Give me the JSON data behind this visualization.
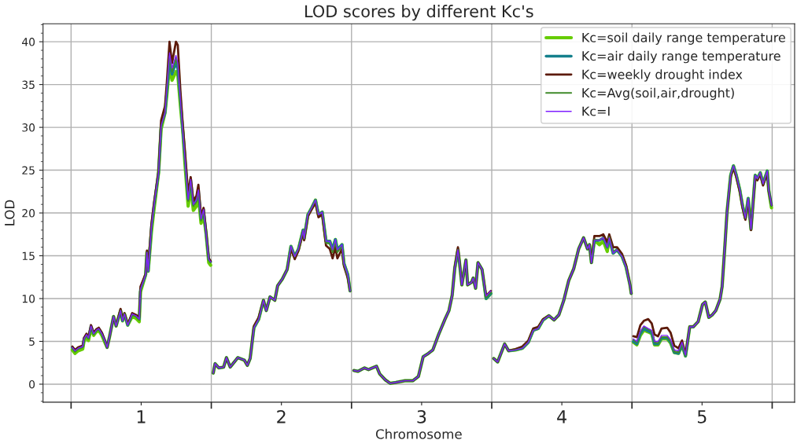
{
  "chart_data": {
    "type": "line",
    "title": "LOD scores by different Kc's",
    "xlabel": "Chromosome",
    "ylabel": "LOD",
    "x": [
      0.509,
      0.528,
      0.55,
      0.583,
      0.592,
      0.61,
      0.624,
      0.642,
      0.661,
      0.679,
      0.697,
      0.72,
      0.743,
      0.757,
      0.775,
      0.803,
      0.821,
      0.853,
      0.867,
      0.881,
      0.904,
      0.936,
      0.963,
      0.986,
      0.995,
      1.032,
      1.041,
      1.05,
      1.073,
      1.092,
      1.124,
      1.142,
      1.17,
      1.183,
      1.202,
      1.22,
      1.248,
      1.261,
      1.28,
      1.298,
      1.312,
      1.335,
      1.353,
      1.372,
      1.394,
      1.408,
      1.427,
      1.445,
      1.463,
      1.482,
      1.495,
      1.5,
      1.514,
      1.527,
      1.554,
      1.588,
      1.608,
      1.635,
      1.689,
      1.736,
      1.757,
      1.777,
      1.804,
      1.838,
      1.872,
      1.892,
      1.919,
      1.953,
      1.973,
      2.007,
      2.041,
      2.068,
      2.095,
      2.122,
      2.155,
      2.162,
      2.189,
      2.216,
      2.243,
      2.264,
      2.291,
      2.318,
      2.345,
      2.365,
      2.385,
      2.399,
      2.432,
      2.446,
      2.473,
      2.49,
      2.5,
      2.517,
      2.546,
      2.592,
      2.621,
      2.649,
      2.678,
      2.701,
      2.741,
      2.776,
      2.816,
      2.879,
      2.937,
      2.977,
      3.011,
      3.04,
      3.08,
      3.121,
      3.167,
      3.195,
      3.218,
      3.236,
      3.259,
      3.27,
      3.287,
      3.316,
      3.328,
      3.356,
      3.368,
      3.385,
      3.402,
      3.431,
      3.46,
      3.494,
      3.5,
      3.514,
      3.542,
      3.592,
      3.62,
      3.669,
      3.718,
      3.761,
      3.796,
      3.831,
      3.866,
      3.908,
      3.944,
      3.979,
      4.014,
      4.049,
      4.085,
      4.12,
      4.155,
      4.183,
      4.197,
      4.211,
      4.232,
      4.268,
      4.296,
      4.324,
      4.338,
      4.366,
      4.394,
      4.43,
      4.458,
      4.486,
      4.495,
      4.5,
      4.51,
      4.535,
      4.56,
      4.585,
      4.616,
      4.641,
      4.661,
      4.686,
      4.711,
      4.751,
      4.776,
      4.802,
      4.832,
      4.857,
      4.882,
      4.912,
      4.937,
      4.972,
      5.003,
      5.023,
      5.048,
      5.073,
      5.098,
      5.128,
      5.143,
      5.163,
      5.178,
      5.204,
      5.224,
      5.244,
      5.269,
      5.289,
      5.309,
      5.329,
      5.349,
      5.379,
      5.394,
      5.415,
      5.435,
      5.465,
      5.475,
      5.495
    ],
    "series": [
      {
        "name": "Kc=soil daily range temperature",
        "color": "#66cc00",
        "values": [
          4.0,
          3.6,
          3.9,
          4.1,
          5.0,
          5.5,
          5.1,
          6.5,
          5.7,
          6.1,
          6.3,
          5.7,
          4.8,
          4.3,
          5.6,
          7.9,
          6.8,
          8.6,
          7.4,
          8.2,
          6.9,
          7.9,
          7.7,
          7.3,
          10.8,
          12.8,
          15.4,
          13.2,
          17.8,
          20.5,
          24.7,
          29.8,
          31.7,
          33.8,
          37.3,
          35.5,
          36.5,
          36.2,
          32.5,
          29.3,
          25.8,
          20.8,
          23.2,
          20.3,
          20.8,
          22.0,
          18.8,
          19.8,
          17.6,
          14.2,
          13.9,
          null,
          1.3,
          2.4,
          1.9,
          2.0,
          3.1,
          2.0,
          3.1,
          2.8,
          2.2,
          3.0,
          6.6,
          7.6,
          9.8,
          8.6,
          10.2,
          9.8,
          11.5,
          12.3,
          13.4,
          16.1,
          14.9,
          15.8,
          18.0,
          17.0,
          19.8,
          20.6,
          21.5,
          19.8,
          20.1,
          16.7,
          16.7,
          15.7,
          16.9,
          15.7,
          16.3,
          14.1,
          12.8,
          10.9,
          null,
          1.6,
          1.5,
          1.9,
          1.7,
          1.9,
          2.1,
          1.2,
          0.5,
          0.1,
          0.2,
          0.4,
          0.4,
          0.9,
          3.2,
          3.5,
          4.0,
          5.8,
          7.6,
          8.6,
          10.4,
          13.5,
          15.7,
          14.2,
          11.6,
          14.5,
          11.6,
          11.9,
          12.4,
          11.2,
          14.2,
          13.4,
          10.0,
          10.6,
          null,
          3.0,
          2.6,
          4.7,
          3.9,
          4.0,
          4.2,
          4.9,
          6.3,
          6.5,
          7.5,
          8.0,
          7.5,
          8.1,
          9.8,
          12.1,
          13.5,
          15.8,
          17.1,
          15.8,
          16.3,
          14.2,
          16.8,
          16.3,
          16.7,
          15.5,
          17.1,
          15.3,
          15.7,
          14.9,
          13.7,
          11.6,
          10.6,
          null,
          4.9,
          4.6,
          5.7,
          6.3,
          6.1,
          5.9,
          4.6,
          4.6,
          5.3,
          5.3,
          4.8,
          3.7,
          3.6,
          4.6,
          3.3,
          6.7,
          6.7,
          7.3,
          9.3,
          9.6,
          7.8,
          8.1,
          8.6,
          9.9,
          11.4,
          16.2,
          20.1,
          24.4,
          25.5,
          24.4,
          22.7,
          20.8,
          19.4,
          21.7,
          18.1,
          24.4,
          24.0,
          24.7,
          23.4,
          24.9,
          22.7,
          20.6
        ]
      },
      {
        "name": "Kc=air daily range temperature",
        "color": "#14808c",
        "values": [
          4.3,
          3.9,
          4.2,
          4.4,
          5.3,
          5.8,
          5.4,
          6.8,
          5.9,
          6.3,
          6.5,
          5.9,
          5.0,
          4.3,
          5.6,
          7.9,
          6.8,
          8.6,
          7.4,
          8.2,
          6.9,
          8.2,
          8.0,
          7.6,
          11.1,
          12.8,
          15.4,
          13.2,
          18.3,
          21.0,
          24.7,
          30.2,
          31.7,
          34.2,
          37.8,
          36.2,
          37.6,
          36.8,
          33.2,
          29.3,
          26.5,
          21.6,
          23.9,
          21.0,
          21.5,
          22.7,
          19.3,
          20.4,
          17.6,
          14.6,
          14.3,
          null,
          1.3,
          2.4,
          1.9,
          2.0,
          3.1,
          2.0,
          3.1,
          2.8,
          2.2,
          3.0,
          6.6,
          7.6,
          9.8,
          8.6,
          10.2,
          9.8,
          11.5,
          12.3,
          13.4,
          16.1,
          14.9,
          15.8,
          18.0,
          17.0,
          19.8,
          20.6,
          21.5,
          19.8,
          20.1,
          16.7,
          16.7,
          15.7,
          16.9,
          15.7,
          16.3,
          14.1,
          12.8,
          10.9,
          null,
          1.6,
          1.5,
          1.9,
          1.7,
          1.9,
          2.1,
          1.2,
          0.5,
          0.1,
          0.2,
          0.4,
          0.4,
          0.9,
          3.2,
          3.5,
          4.0,
          5.8,
          7.6,
          8.6,
          10.4,
          13.5,
          15.7,
          14.2,
          11.6,
          14.5,
          11.6,
          11.9,
          12.4,
          11.2,
          14.2,
          13.4,
          10.0,
          10.6,
          null,
          3.0,
          2.6,
          4.7,
          3.9,
          4.0,
          4.2,
          4.9,
          6.3,
          6.5,
          7.5,
          8.0,
          7.5,
          8.1,
          9.8,
          12.1,
          13.5,
          15.8,
          17.1,
          15.8,
          16.3,
          14.2,
          16.8,
          16.8,
          17.1,
          16.0,
          17.1,
          15.3,
          15.7,
          14.9,
          13.7,
          11.6,
          10.6,
          null,
          5.0,
          4.7,
          5.9,
          6.5,
          6.2,
          6.0,
          4.7,
          4.7,
          5.4,
          5.4,
          4.9,
          3.7,
          3.6,
          4.6,
          3.3,
          6.7,
          6.7,
          7.3,
          9.3,
          9.6,
          7.8,
          8.1,
          8.6,
          9.9,
          11.4,
          16.2,
          20.1,
          24.4,
          25.5,
          24.4,
          22.7,
          20.8,
          19.4,
          21.7,
          18.1,
          24.4,
          24.0,
          24.7,
          23.4,
          24.9,
          22.7,
          20.9
        ]
      },
      {
        "name": "Kc=weekly drought index",
        "color": "#5c1a0a",
        "values": [
          4.4,
          4.0,
          4.3,
          4.5,
          5.4,
          5.9,
          5.5,
          6.9,
          6.0,
          6.4,
          6.6,
          6.0,
          5.0,
          4.3,
          5.6,
          7.9,
          6.8,
          8.8,
          7.5,
          8.3,
          7.0,
          8.3,
          8.1,
          7.8,
          11.4,
          12.9,
          15.6,
          13.6,
          18.7,
          21.2,
          24.9,
          30.8,
          32.5,
          35.3,
          40.0,
          37.5,
          40.0,
          39.6,
          34.2,
          30.0,
          27.3,
          22.2,
          24.2,
          21.4,
          22.0,
          23.3,
          19.6,
          20.6,
          17.8,
          14.7,
          14.4,
          null,
          1.3,
          2.4,
          1.9,
          2.0,
          3.1,
          2.0,
          3.1,
          2.8,
          2.2,
          3.0,
          6.8,
          7.8,
          9.8,
          8.6,
          10.2,
          9.8,
          11.5,
          12.3,
          13.4,
          15.8,
          14.6,
          15.6,
          17.8,
          16.8,
          19.6,
          20.4,
          21.2,
          19.5,
          19.8,
          16.2,
          15.8,
          14.7,
          16.0,
          14.7,
          15.8,
          13.8,
          12.4,
          10.9,
          null,
          1.6,
          1.5,
          1.9,
          1.7,
          1.9,
          2.1,
          1.2,
          0.5,
          0.1,
          0.2,
          0.4,
          0.4,
          0.9,
          3.2,
          3.5,
          4.0,
          5.8,
          7.6,
          8.6,
          10.4,
          13.6,
          16.0,
          14.3,
          11.6,
          14.5,
          11.6,
          11.9,
          12.4,
          11.2,
          14.2,
          13.4,
          10.3,
          10.9,
          null,
          3.0,
          2.6,
          4.7,
          3.9,
          4.1,
          4.4,
          5.1,
          6.5,
          6.7,
          7.6,
          8.0,
          7.5,
          8.1,
          9.8,
          12.1,
          13.5,
          15.8,
          17.1,
          15.8,
          16.3,
          14.2,
          17.3,
          17.3,
          17.5,
          16.6,
          17.5,
          16.0,
          16.0,
          15.2,
          13.9,
          11.6,
          10.6,
          null,
          5.6,
          5.5,
          6.9,
          7.4,
          7.6,
          7.1,
          5.8,
          5.6,
          6.5,
          6.6,
          6.0,
          4.5,
          4.2,
          5.1,
          3.5,
          6.7,
          6.7,
          7.3,
          9.3,
          9.6,
          7.8,
          8.1,
          8.6,
          9.9,
          11.4,
          16.2,
          20.1,
          24.2,
          25.3,
          24.2,
          22.5,
          20.6,
          19.2,
          21.5,
          18.0,
          24.2,
          23.8,
          24.5,
          23.2,
          24.7,
          22.6,
          20.9
        ]
      },
      {
        "name": "Kc=Avg(soil,air,drought)",
        "color": "#3f8a2a",
        "values": [
          4.2,
          3.8,
          4.1,
          4.3,
          5.2,
          5.7,
          5.3,
          6.7,
          5.8,
          6.2,
          6.4,
          5.8,
          4.9,
          4.3,
          5.6,
          7.9,
          6.8,
          8.6,
          7.4,
          8.2,
          6.9,
          8.1,
          7.9,
          7.5,
          11.0,
          12.8,
          15.4,
          13.2,
          18.1,
          20.8,
          24.7,
          30.0,
          31.7,
          34.4,
          38.3,
          36.5,
          38.0,
          37.2,
          33.0,
          29.3,
          26.3,
          21.4,
          23.7,
          20.8,
          21.3,
          22.5,
          19.1,
          20.2,
          17.6,
          14.5,
          14.2,
          null,
          1.3,
          2.4,
          1.9,
          2.0,
          3.1,
          2.0,
          3.1,
          2.8,
          2.2,
          3.0,
          6.6,
          7.6,
          9.8,
          8.6,
          10.2,
          9.8,
          11.5,
          12.3,
          13.4,
          16.1,
          14.9,
          15.8,
          18.0,
          17.0,
          19.8,
          20.6,
          21.5,
          19.8,
          20.1,
          16.5,
          16.4,
          15.4,
          16.6,
          15.4,
          16.1,
          14.0,
          12.6,
          10.9,
          null,
          1.6,
          1.5,
          1.9,
          1.7,
          1.9,
          2.1,
          1.2,
          0.5,
          0.1,
          0.2,
          0.4,
          0.4,
          0.9,
          3.2,
          3.5,
          4.0,
          5.8,
          7.6,
          8.6,
          10.4,
          13.5,
          15.7,
          14.2,
          11.6,
          14.5,
          11.6,
          11.9,
          12.4,
          11.2,
          14.2,
          13.4,
          10.1,
          10.7,
          null,
          3.0,
          2.6,
          4.7,
          3.9,
          4.0,
          4.2,
          4.9,
          6.3,
          6.5,
          7.5,
          8.0,
          7.5,
          8.1,
          9.8,
          12.1,
          13.5,
          15.8,
          17.1,
          15.8,
          16.3,
          14.2,
          16.9,
          16.8,
          17.1,
          16.0,
          17.2,
          15.4,
          15.7,
          14.9,
          13.7,
          11.6,
          10.6,
          null,
          5.2,
          4.9,
          6.1,
          6.7,
          6.4,
          6.2,
          4.9,
          4.8,
          5.5,
          5.5,
          5.0,
          3.8,
          3.7,
          4.7,
          3.3,
          6.7,
          6.7,
          7.3,
          9.3,
          9.6,
          7.8,
          8.1,
          8.6,
          9.9,
          11.4,
          16.2,
          20.1,
          24.4,
          25.5,
          24.4,
          22.7,
          20.8,
          19.4,
          21.7,
          18.1,
          24.4,
          24.0,
          24.7,
          23.4,
          24.9,
          22.7,
          20.8
        ]
      },
      {
        "name": "Kc=I",
        "color": "#7f1fff",
        "values": [
          4.3,
          3.9,
          4.2,
          4.4,
          5.3,
          5.8,
          5.4,
          6.8,
          5.9,
          6.3,
          6.5,
          5.9,
          5.0,
          4.3,
          5.6,
          7.9,
          6.8,
          8.6,
          7.4,
          8.2,
          6.9,
          8.2,
          8.0,
          7.6,
          11.1,
          12.8,
          15.4,
          13.2,
          18.3,
          21.0,
          24.7,
          30.2,
          31.7,
          34.5,
          38.7,
          36.9,
          38.4,
          37.5,
          33.2,
          29.3,
          26.5,
          21.6,
          23.9,
          21.0,
          21.5,
          22.7,
          19.3,
          20.4,
          17.6,
          14.6,
          14.3,
          null,
          1.3,
          2.4,
          1.9,
          2.0,
          3.1,
          2.0,
          3.1,
          2.8,
          2.2,
          3.0,
          6.6,
          7.6,
          9.8,
          8.6,
          10.2,
          9.8,
          11.5,
          12.3,
          13.4,
          16.1,
          14.9,
          15.8,
          18.0,
          17.0,
          19.8,
          20.6,
          21.5,
          19.8,
          20.1,
          16.7,
          16.7,
          15.7,
          16.9,
          15.7,
          16.3,
          14.1,
          12.8,
          10.9,
          null,
          1.6,
          1.5,
          1.9,
          1.7,
          1.9,
          2.1,
          1.2,
          0.5,
          0.1,
          0.2,
          0.4,
          0.4,
          0.9,
          3.2,
          3.5,
          4.0,
          5.8,
          7.6,
          8.6,
          10.4,
          13.5,
          15.7,
          14.2,
          11.6,
          14.5,
          11.6,
          11.9,
          12.4,
          11.2,
          14.2,
          13.4,
          10.3,
          10.9,
          null,
          3.0,
          2.6,
          4.7,
          3.9,
          4.0,
          4.2,
          4.9,
          6.3,
          6.5,
          7.5,
          8.0,
          7.5,
          8.1,
          9.8,
          12.1,
          13.5,
          15.8,
          17.1,
          15.8,
          16.3,
          14.2,
          16.8,
          16.8,
          17.1,
          16.0,
          17.1,
          15.3,
          15.7,
          14.9,
          13.7,
          11.6,
          10.6,
          null,
          5.3,
          5.0,
          6.2,
          6.8,
          6.5,
          6.3,
          5.0,
          5.0,
          5.7,
          5.7,
          5.2,
          4.0,
          3.9,
          4.9,
          3.4,
          6.7,
          6.7,
          7.3,
          9.3,
          9.6,
          7.8,
          8.1,
          8.6,
          9.9,
          11.4,
          16.2,
          20.1,
          24.4,
          25.5,
          24.4,
          22.7,
          20.8,
          19.4,
          21.7,
          18.1,
          24.4,
          24.0,
          24.7,
          23.4,
          24.9,
          22.7,
          20.9
        ]
      }
    ],
    "xlim": [
      0.3,
      5.66
    ],
    "ylim": [
      -2.1,
      42.1
    ],
    "xticks": [
      {
        "value": 0.5,
        "label": null
      },
      1,
      {
        "value": 1.5,
        "label": null
      },
      2,
      {
        "value": 2.5,
        "label": null
      },
      3,
      {
        "value": 3.5,
        "label": null
      },
      4,
      {
        "value": 4.5,
        "label": null
      },
      5,
      {
        "value": 5.5,
        "label": null
      }
    ],
    "yticks": [
      0,
      5,
      10,
      15,
      20,
      25,
      30,
      35,
      40
    ],
    "grid": true,
    "legend": "top right"
  }
}
